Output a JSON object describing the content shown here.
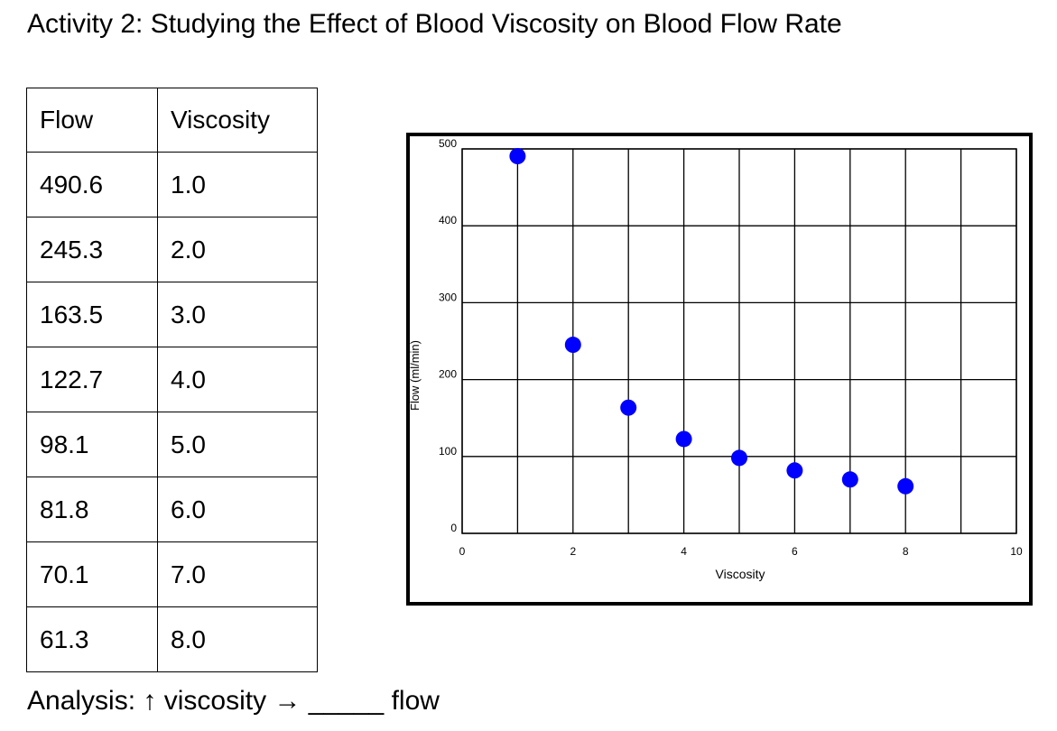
{
  "page": {
    "title": "Activity 2: Studying the Effect of Blood Viscosity on Blood Flow Rate",
    "analysis": {
      "prefix": "Analysis:",
      "up_arrow": "↑",
      "word1": "viscosity",
      "right_arrow": "→",
      "blank": "_____",
      "word2": "flow"
    }
  },
  "table": {
    "headers": [
      "Flow",
      "Viscosity"
    ],
    "rows": [
      [
        "490.6",
        "1.0"
      ],
      [
        "245.3",
        "2.0"
      ],
      [
        "163.5",
        "3.0"
      ],
      [
        "122.7",
        "4.0"
      ],
      [
        "98.1",
        "5.0"
      ],
      [
        "81.8",
        "6.0"
      ],
      [
        "70.1",
        "7.0"
      ],
      [
        "61.3",
        "8.0"
      ]
    ]
  },
  "chart_data": {
    "type": "scatter",
    "title": "",
    "xlabel": "Viscosity",
    "ylabel": "Flow (ml/min)",
    "xlim": [
      0,
      10
    ],
    "ylim": [
      0,
      500
    ],
    "xticks": [
      0,
      2,
      4,
      6,
      8,
      10
    ],
    "yticks": [
      0,
      100,
      200,
      300,
      400,
      500
    ],
    "grid": true,
    "marker_color": "#0000ff",
    "x": [
      1,
      2,
      3,
      4,
      5,
      6,
      7,
      8
    ],
    "y": [
      490.6,
      245.3,
      163.5,
      122.7,
      98.1,
      81.8,
      70.1,
      61.3
    ]
  }
}
